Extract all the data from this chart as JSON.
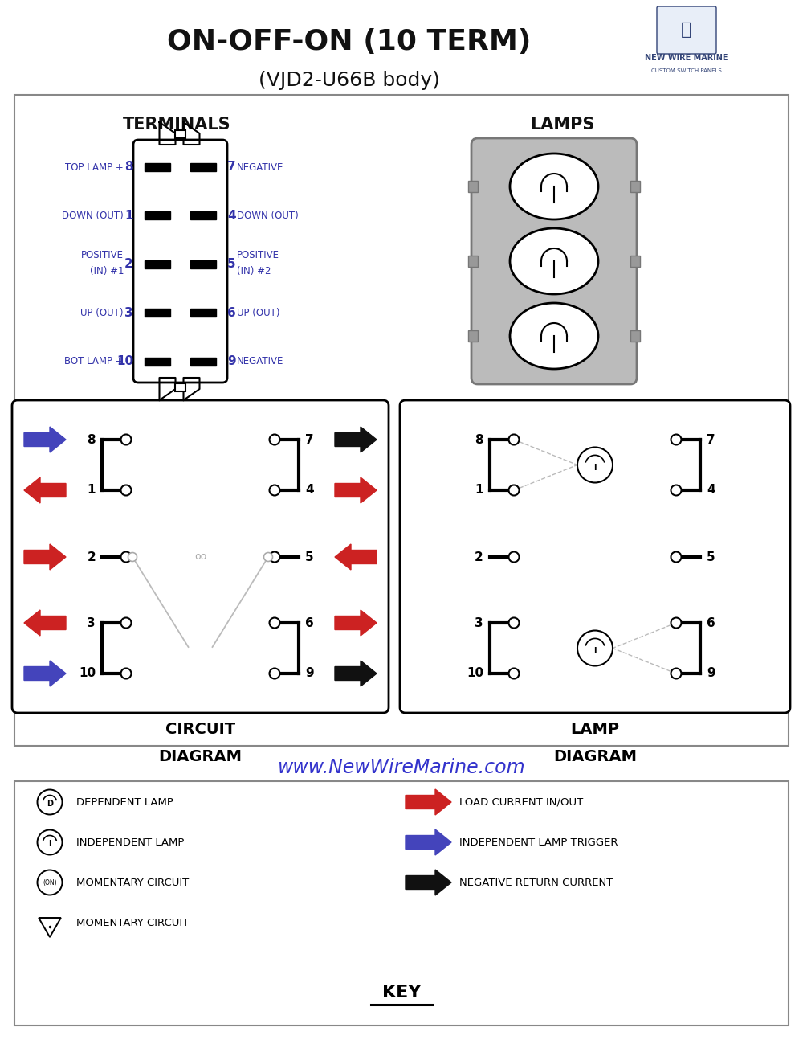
{
  "title": "ON-OFF-ON (10 TERM)",
  "subtitle": "(VJD2-U66B body)",
  "bg_color": "#FFFFFF",
  "title_color": "#111111",
  "label_color": "#3333AA",
  "url_color": "#3333CC",
  "url_text": "www.NewWireMarine.com",
  "terminals_title": "TERMINALS",
  "lamps_title": "LAMPS",
  "circuit_label": "CIRCUIT\nDIAGRAM",
  "lamp_diag_label": "LAMP\nDIAGRAM",
  "key_label": "KEY",
  "left_labels": [
    {
      "num": "8",
      "text": "TOP LAMP +",
      "multiline": false
    },
    {
      "num": "1",
      "text": "DOWN (OUT)",
      "multiline": false
    },
    {
      "num": "2",
      "text1": "POSITIVE",
      "text2": "(IN) #1",
      "multiline": true
    },
    {
      "num": "3",
      "text": "UP (OUT)",
      "multiline": false
    },
    {
      "num": "10",
      "text": "BOT LAMP +",
      "multiline": false
    }
  ],
  "right_labels": [
    {
      "num": "7",
      "text": "NEGATIVE",
      "multiline": false
    },
    {
      "num": "4",
      "text": "DOWN (OUT)",
      "multiline": false
    },
    {
      "num": "5",
      "text1": "POSITIVE",
      "text2": "(IN) #2",
      "multiline": true
    },
    {
      "num": "6",
      "text": "UP (OUT)",
      "multiline": false
    },
    {
      "num": "9",
      "text": "NEGATIVE",
      "multiline": false
    }
  ],
  "row_nums_left": [
    "8",
    "1",
    "2",
    "3",
    "10"
  ],
  "row_nums_right": [
    "7",
    "4",
    "5",
    "6",
    "9"
  ],
  "left_arrow_colors": [
    "#4444BB",
    "#CC2222",
    "#CC2222",
    "#CC2222",
    "#4444BB"
  ],
  "left_arrow_dirs": [
    "right",
    "left",
    "right",
    "left",
    "right"
  ],
  "right_arrow_colors": [
    "#111111",
    "#CC2222",
    "#CC2222",
    "#CC2222",
    "#111111"
  ],
  "right_arrow_dirs": [
    "right",
    "right",
    "left",
    "right",
    "right"
  ],
  "key_items_left": [
    {
      "symbol": "dep",
      "text": "DEPENDENT LAMP"
    },
    {
      "symbol": "indep",
      "text": "INDEPENDENT LAMP"
    },
    {
      "symbol": "on",
      "text": "MOMENTARY CIRCUIT"
    },
    {
      "symbol": "tri",
      "text": "MOMENTARY CIRCUIT"
    }
  ],
  "key_items_right": [
    {
      "color": "#CC2222",
      "text": "LOAD CURRENT IN/OUT"
    },
    {
      "color": "#4444BB",
      "text": "INDEPENDENT LAMP TRIGGER"
    },
    {
      "color": "#111111",
      "text": "NEGATIVE RETURN CURRENT"
    }
  ]
}
